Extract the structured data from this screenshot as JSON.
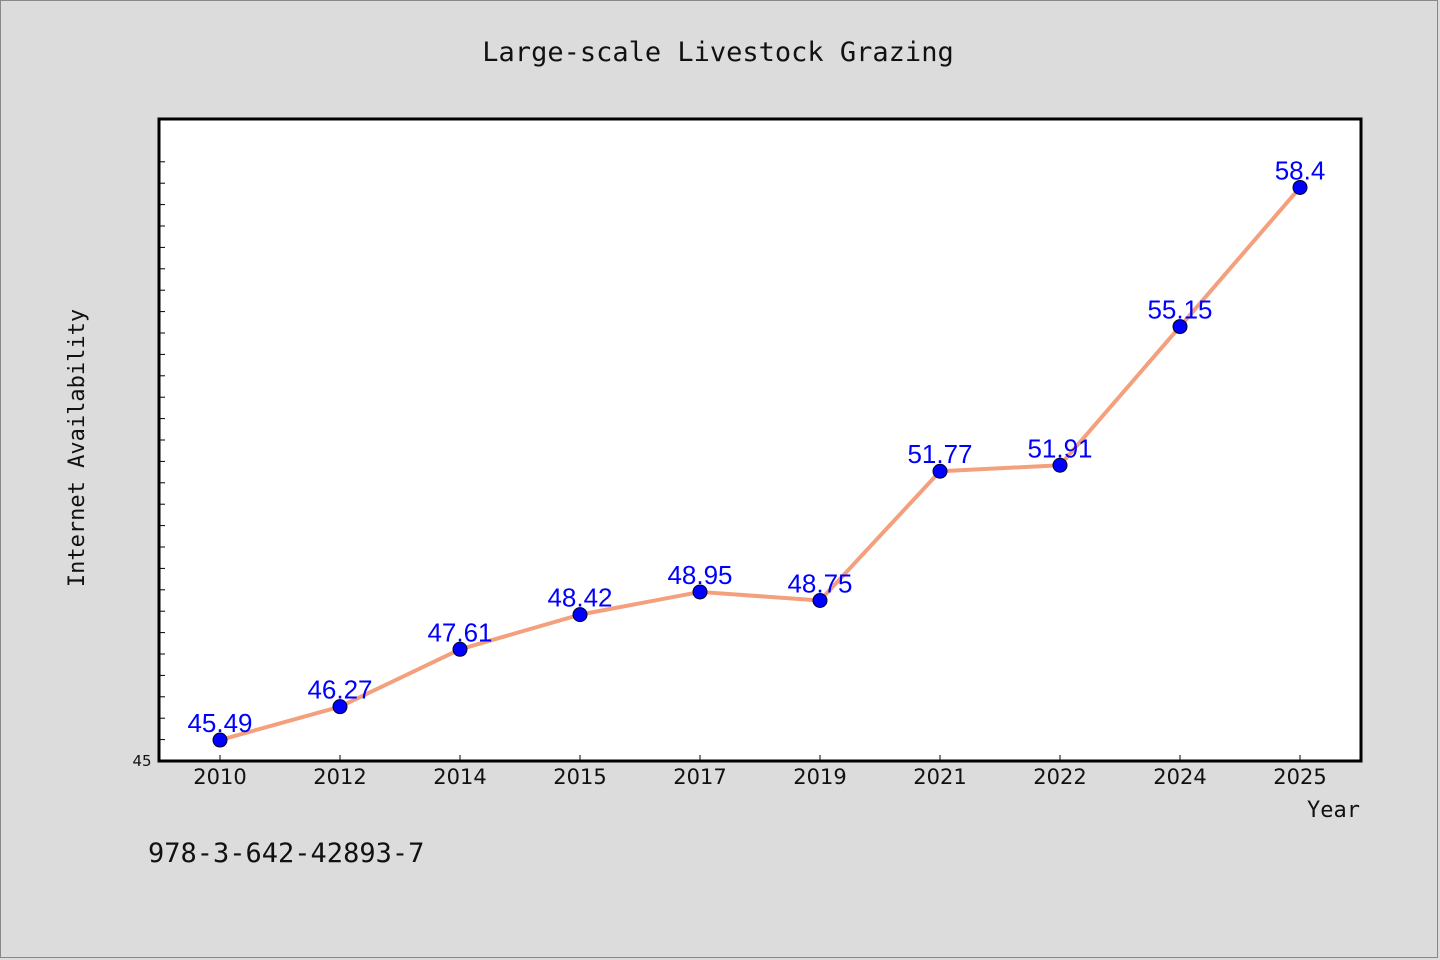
{
  "chart_data": {
    "type": "line",
    "title": "Large-scale Livestock Grazing",
    "xlabel": "Year",
    "ylabel": "Internet Availability",
    "categories": [
      "2010",
      "2012",
      "2014",
      "2015",
      "2017",
      "2019",
      "2021",
      "2022",
      "2024",
      "2025"
    ],
    "series": [
      {
        "values": [
          45.49,
          46.27,
          47.61,
          48.42,
          48.95,
          48.75,
          51.77,
          51.91,
          55.15,
          58.4
        ],
        "labels": [
          "45.49",
          "46.27",
          "47.61",
          "48.42",
          "48.95",
          "48.75",
          "51.77",
          "51.91",
          "55.15",
          "58.4"
        ],
        "line_color": "#f4a07c",
        "marker_color": "#0000ff"
      }
    ],
    "ylim": [
      45,
      60
    ],
    "yticks_labeled": [
      "45"
    ],
    "grid": false,
    "legend": "none"
  },
  "footer": {
    "isbn": "978-3-642-42893-7"
  }
}
